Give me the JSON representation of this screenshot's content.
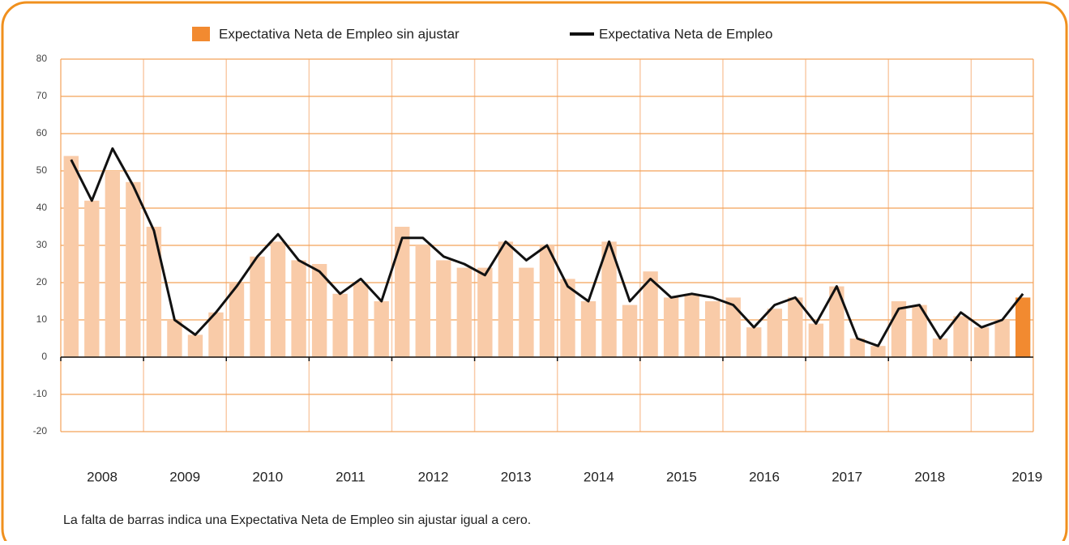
{
  "chart_data": {
    "type": "bar-line",
    "categories": [
      "2008",
      null,
      null,
      null,
      "2009",
      null,
      null,
      null,
      "2010",
      null,
      null,
      null,
      "2011",
      null,
      null,
      null,
      "2012",
      null,
      null,
      null,
      "2013",
      null,
      null,
      null,
      "2014",
      null,
      null,
      null,
      "2015",
      null,
      null,
      null,
      "2016",
      null,
      null,
      null,
      "2017",
      null,
      null,
      null,
      "2018",
      null,
      null,
      null,
      "2019",
      null,
      null
    ],
    "series": [
      {
        "name": "Expectativa Neta de Empleo sin ajustar",
        "type": "bar",
        "color": "#f28a30",
        "bar_colors": [
          "#f9cba8",
          "#f9cba8",
          "#f9cba8",
          "#f9cba8",
          "#f9cba8",
          "#f9cba8",
          "#f9cba8",
          "#f9cba8",
          "#f9cba8",
          "#f9cba8",
          "#f9cba8",
          "#f9cba8",
          "#f9cba8",
          "#f9cba8",
          "#f9cba8",
          "#f9cba8",
          "#f9cba8",
          "#f9cba8",
          "#f9cba8",
          "#f9cba8",
          "#f9cba8",
          "#f9cba8",
          "#f9cba8",
          "#f9cba8",
          "#f9cba8",
          "#f9cba8",
          "#f9cba8",
          "#f9cba8",
          "#f9cba8",
          "#f9cba8",
          "#f9cba8",
          "#f9cba8",
          "#f9cba8",
          "#f9cba8",
          "#f9cba8",
          "#f9cba8",
          "#f9cba8",
          "#f9cba8",
          "#f9cba8",
          "#f9cba8",
          "#f9cba8",
          "#f9cba8",
          "#f9cba8",
          "#f9cba8",
          "#f9cba8",
          "#f9cba8",
          "#f28a30"
        ],
        "values": [
          54,
          42,
          50,
          47,
          35,
          10,
          6,
          12,
          20,
          27,
          31,
          26,
          25,
          17,
          20,
          15,
          35,
          30,
          26,
          24,
          24,
          31,
          24,
          30,
          21,
          15,
          31,
          14,
          23,
          16,
          17,
          15,
          16,
          8,
          13,
          16,
          9,
          19,
          5,
          3,
          15,
          14,
          5,
          11,
          8,
          10,
          16
        ]
      },
      {
        "name": "Expectativa Neta de Empleo",
        "type": "line",
        "color": "#111111",
        "values": [
          53,
          42,
          56,
          46,
          34,
          10,
          6,
          12,
          19,
          27,
          33,
          26,
          23,
          17,
          21,
          15,
          32,
          32,
          27,
          25,
          22,
          31,
          26,
          30,
          19,
          15,
          31,
          15,
          21,
          16,
          17,
          16,
          14,
          8,
          14,
          16,
          9,
          19,
          5,
          3,
          13,
          14,
          5,
          12,
          8,
          10,
          17
        ]
      }
    ],
    "ylim": [
      -20,
      80
    ],
    "yticks": [
      -20,
      -10,
      0,
      10,
      20,
      30,
      40,
      50,
      60,
      70,
      80
    ],
    "grid": true,
    "legend": "top",
    "note": "La falta de barras indica una Expectativa Neta de Empleo sin ajustar igual a cero."
  }
}
